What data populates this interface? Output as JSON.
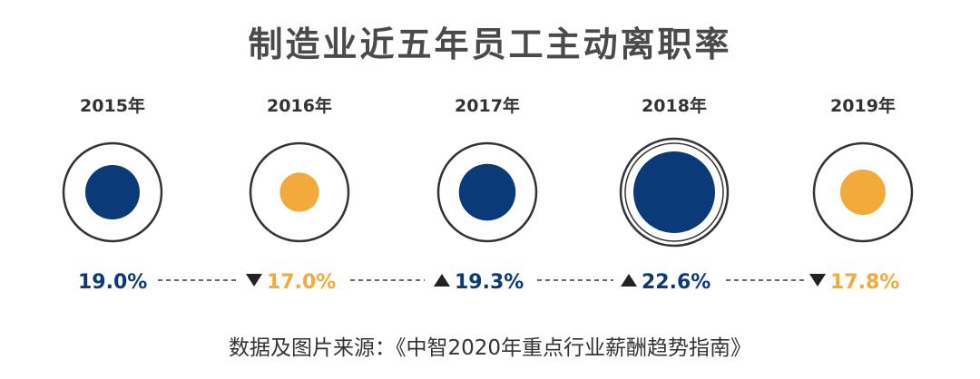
{
  "title": "制造业近五年员工主动离职率",
  "source": "数据及图片来源：《中智2020年重点行业薪酬趋势指南》",
  "colors": {
    "navy": "#0a3a78",
    "orange": "#f2ab3b",
    "ring": "#333333",
    "year_text": "#333333",
    "dash": "#555555",
    "arrow": "#222222"
  },
  "chart_data": {
    "type": "bubble",
    "title": "制造业近五年员工主动离职率",
    "categories": [
      "2015年",
      "2016年",
      "2017年",
      "2018年",
      "2019年"
    ],
    "values": [
      19.0,
      17.0,
      19.3,
      22.6,
      17.8
    ],
    "labels": [
      "19.0%",
      "17.0%",
      "19.3%",
      "22.6%",
      "17.8%"
    ],
    "trend": [
      "none",
      "down",
      "up",
      "up",
      "down"
    ],
    "fill": [
      "navy",
      "orange",
      "navy",
      "navy",
      "orange"
    ],
    "unit": "%"
  }
}
